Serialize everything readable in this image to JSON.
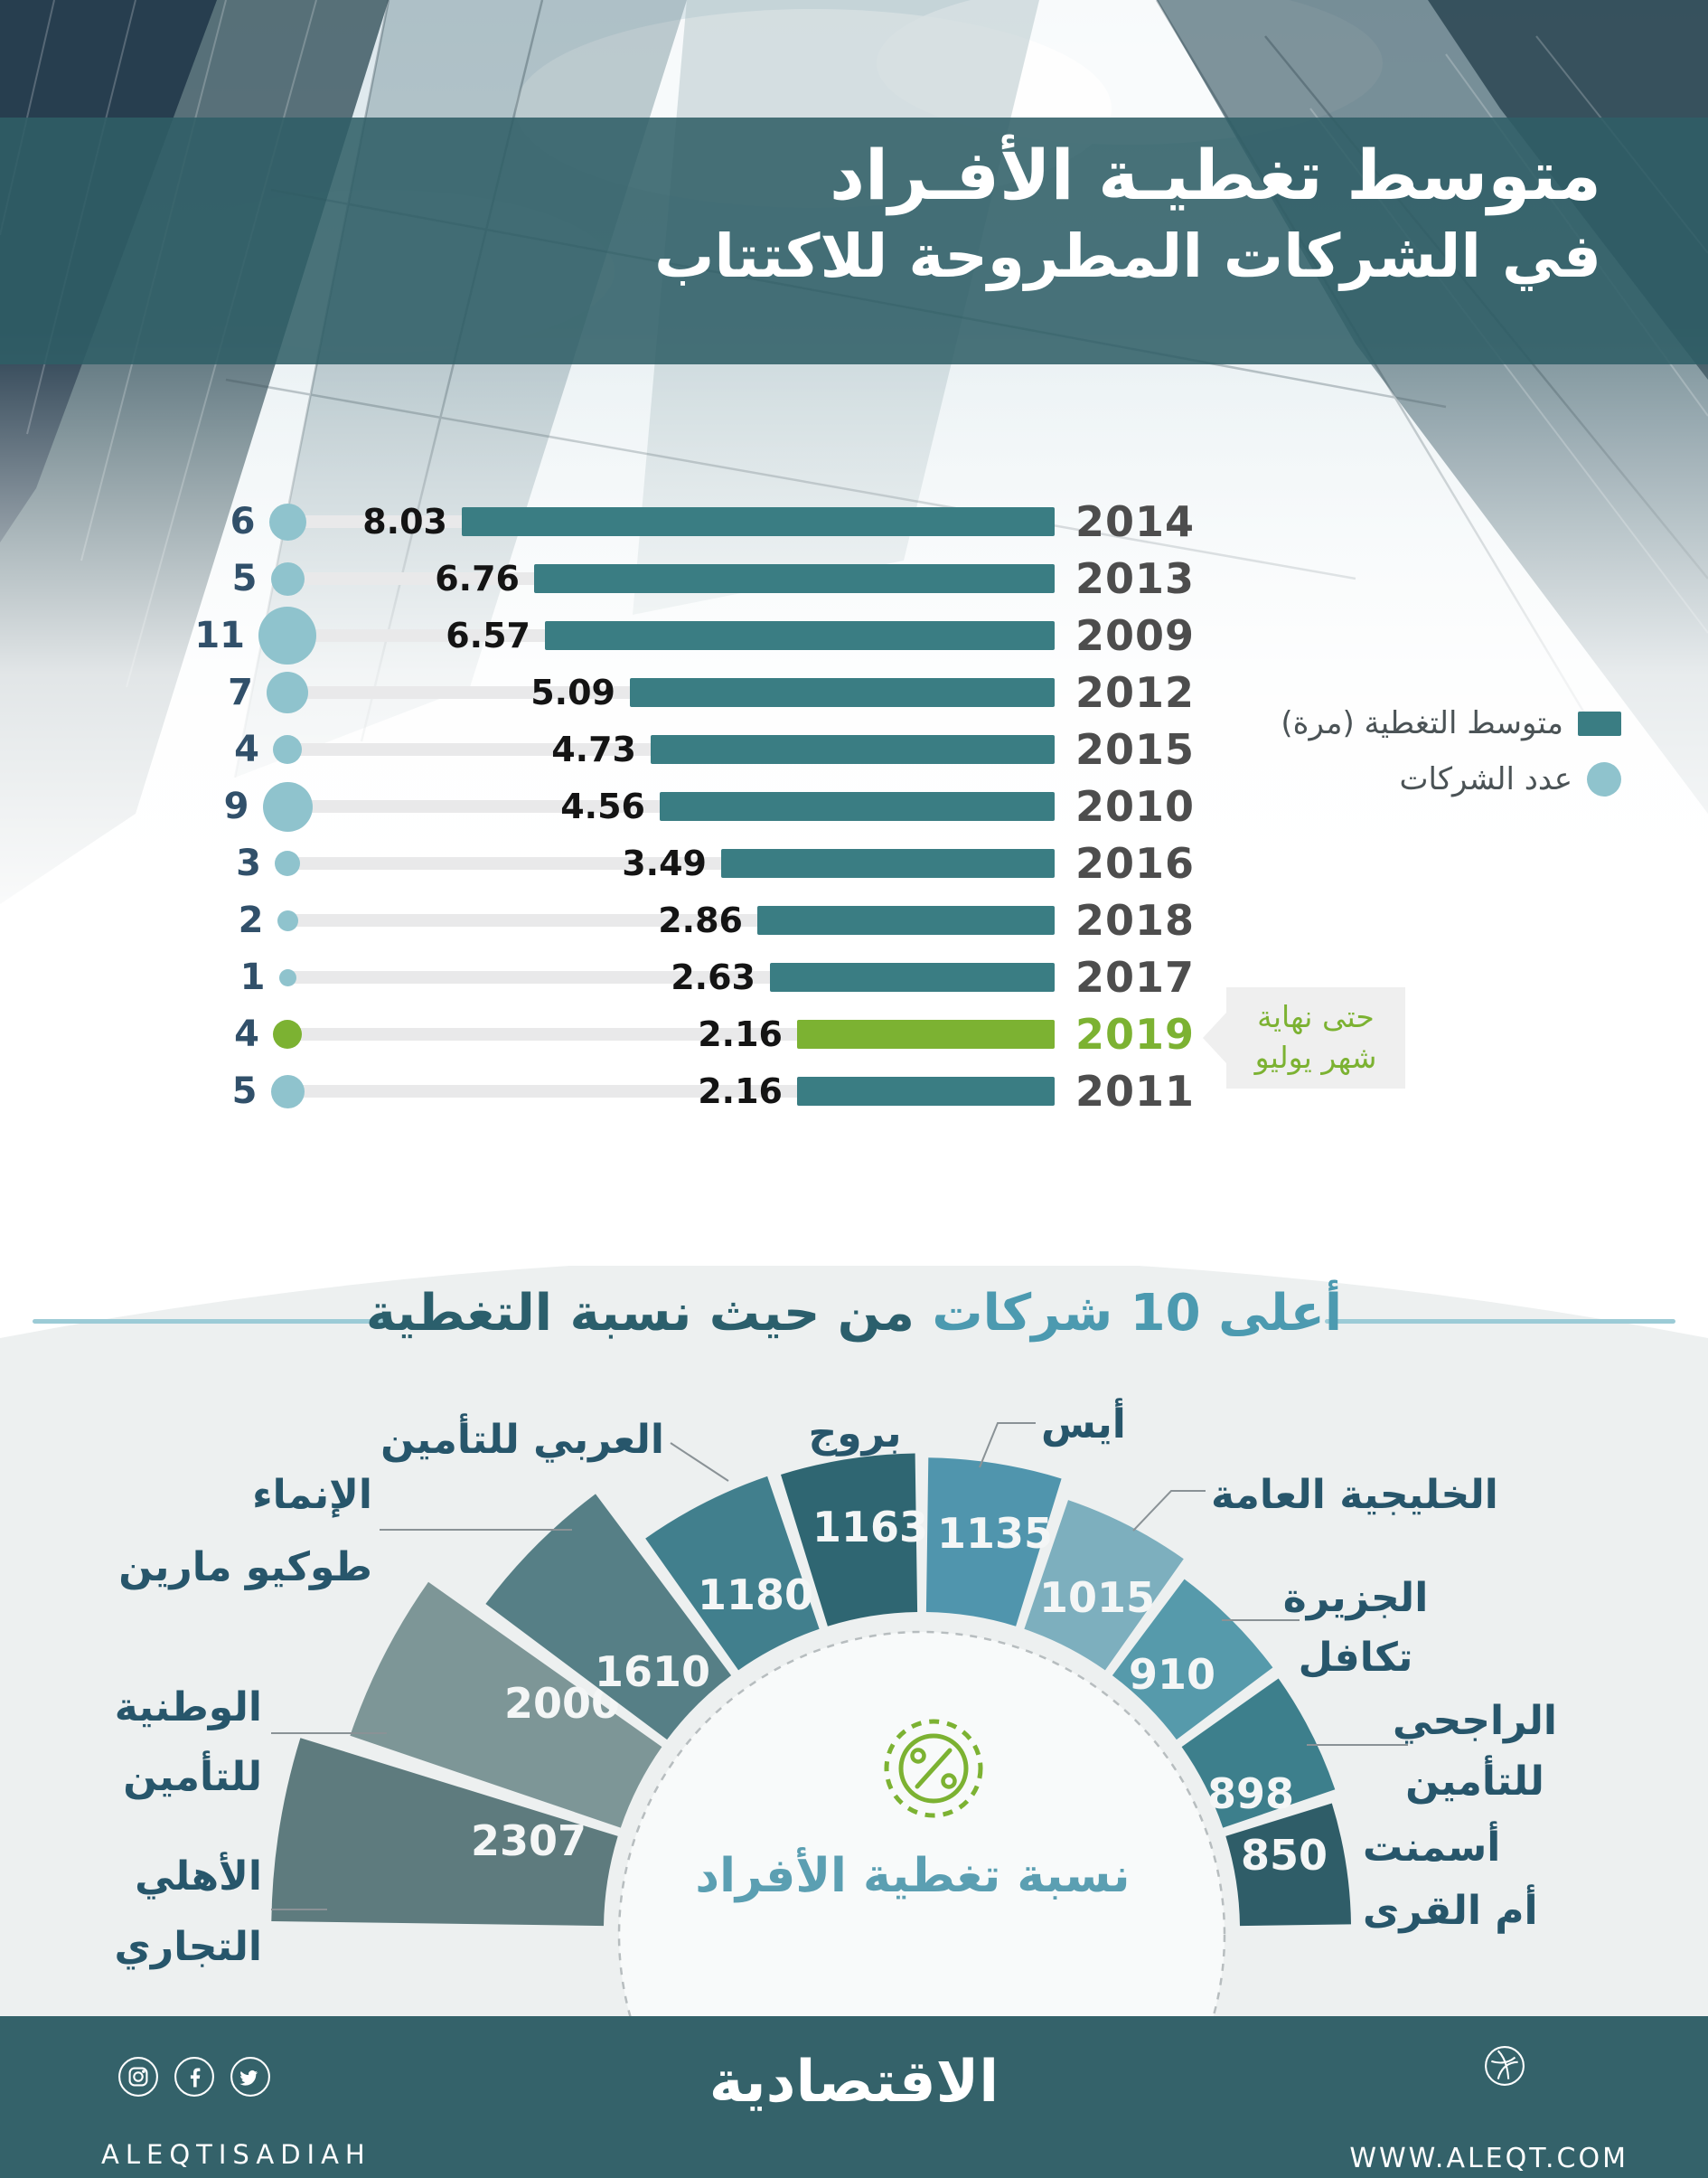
{
  "header": {
    "title_line1": "متوسط تغطيـة الأفـراد",
    "title_line2": "في الشركات المطروحة للاكتتاب"
  },
  "chart_data": [
    {
      "type": "bar",
      "orientation": "horizontal-rtl",
      "title": "متوسط تغطية الأفراد في الشركات المطروحة للاكتتاب",
      "categories": [
        "2014",
        "2013",
        "2009",
        "2012",
        "2015",
        "2010",
        "2016",
        "2018",
        "2017",
        "2019",
        "2011"
      ],
      "series": [
        {
          "name": "متوسط التغطية (مرة)",
          "values": [
            8.03,
            6.76,
            6.57,
            5.09,
            4.73,
            4.56,
            3.49,
            2.86,
            2.63,
            2.16,
            2.16
          ]
        },
        {
          "name": "عدد الشركات",
          "values": [
            6,
            5,
            11,
            7,
            4,
            9,
            3,
            2,
            1,
            4,
            5
          ]
        }
      ],
      "highlight_category": "2019",
      "annotation_lines": [
        "حتى نهاية",
        "شهر يوليو"
      ],
      "legend_position": "right",
      "colors": {
        "bar": "#3a7d83",
        "bar_highlight": "#7cb232",
        "bubble": "#8fc3cd",
        "bubble_highlight": "#7cb232",
        "track": "#e9e9ea",
        "year": "#4d4d4d",
        "count": "#31506a"
      }
    },
    {
      "type": "pie",
      "variant": "semicircle-rose",
      "title": "أعلى 10 شركات من حيث نسبة التغطية",
      "title_highlight": "أعلى 10 شركات",
      "title_rest": "من حيث نسبة التغطية",
      "center_label": "نسبة تغطية الأفراد",
      "companies": [
        {
          "name": "الأهلي التجاري",
          "name_lines": [
            "الأهلي",
            "التجاري"
          ],
          "value": 2307,
          "color": "#5e7b7e"
        },
        {
          "name": "الوطنية للتأمين",
          "name_lines": [
            "الوطنية",
            "للتأمين"
          ],
          "value": 2000,
          "color": "#7d9697"
        },
        {
          "name": "الإنماء طوكيو مارين",
          "name_lines": [
            "الإنماء",
            "طوكيو مارين"
          ],
          "value": 1610,
          "color": "#567f86"
        },
        {
          "name": "العربي للتأمين",
          "name_lines": [
            "العربي للتأمين"
          ],
          "value": 1180,
          "color": "#417f8d"
        },
        {
          "name": "بروج",
          "name_lines": [
            "بروج"
          ],
          "value": 1163,
          "color": "#2f6672"
        },
        {
          "name": "أيس",
          "name_lines": [
            "أيس"
          ],
          "value": 1135,
          "color": "#5095ad"
        },
        {
          "name": "الخليجية العامة",
          "name_lines": [
            "الخليجية العامة"
          ],
          "value": 1015,
          "color": "#7dafbe"
        },
        {
          "name": "الجزيرة تكافل",
          "name_lines": [
            "الجزيرة",
            "تكافل"
          ],
          "value": 910,
          "color": "#569aab"
        },
        {
          "name": "الراجحي للتأمين",
          "name_lines": [
            "الراجحي",
            "للتأمين"
          ],
          "value": 898,
          "color": "#3d7f8c"
        },
        {
          "name": "أسمنت أم القرى",
          "name_lines": [
            "أسمنت",
            "أم القرى"
          ],
          "value": 850,
          "color": "#2f5d68"
        }
      ]
    }
  ],
  "footer": {
    "handle": "ALEQTISADIAH",
    "brand": "الاقتصادية",
    "website": "WWW.ALEQT.COM",
    "social_icons": [
      "instagram",
      "facebook",
      "twitter"
    ],
    "right_icon": "dribbble"
  },
  "colors": {
    "footer_bg": "#34626a",
    "title_band": "#2f5e66",
    "section_bg": "#edf0f0",
    "accent_green": "#7cb232",
    "teal": "#3a7d83",
    "label_teal": "#27566b"
  }
}
